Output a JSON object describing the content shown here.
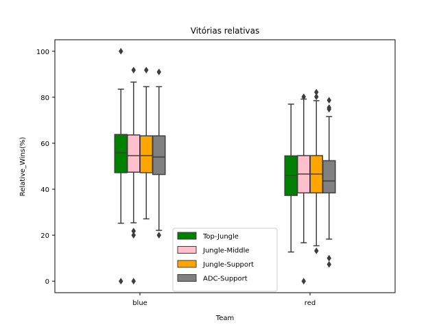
{
  "chart_data": {
    "type": "box",
    "title": "Vitórias relativas",
    "xlabel": "Team",
    "ylabel": "Relative_Wins(%)",
    "ylim": [
      -5,
      105
    ],
    "yticks": [
      0,
      20,
      40,
      60,
      80,
      100
    ],
    "categories": [
      "blue",
      "red"
    ],
    "legend_position": "lower-center",
    "series": [
      {
        "name": "Top-Jungle",
        "color": "#008000",
        "boxes": [
          {
            "whisker_low": 25.2,
            "q1": 47.2,
            "median": 55.8,
            "q3": 63.8,
            "whisker_high": 83.5,
            "outliers": [
              100,
              0
            ]
          },
          {
            "whisker_low": 12.7,
            "q1": 37.3,
            "median": 46.0,
            "q3": 54.5,
            "whisker_high": 77.0,
            "outliers": []
          }
        ]
      },
      {
        "name": "Jungle-Middle",
        "color": "#ffc0cb",
        "boxes": [
          {
            "whisker_low": 25.4,
            "q1": 47.4,
            "median": 54.6,
            "q3": 63.6,
            "whisker_high": 86.6,
            "outliers": [
              91.8,
              21.8,
              20.0,
              0
            ]
          },
          {
            "whisker_low": 16.7,
            "q1": 38.4,
            "median": 46.6,
            "q3": 54.6,
            "whisker_high": 79.2,
            "outliers": [
              80.2,
              0
            ]
          }
        ]
      },
      {
        "name": "Jungle-Support",
        "color": "#ffa500",
        "boxes": [
          {
            "whisker_low": 27.1,
            "q1": 47.2,
            "median": 54.6,
            "q3": 63.2,
            "whisker_high": 84.6,
            "outliers": [
              91.8
            ]
          },
          {
            "whisker_low": 15.4,
            "q1": 38.4,
            "median": 46.6,
            "q3": 54.6,
            "whisker_high": 78.5,
            "outliers": [
              82.2,
              80.2,
              13.2
            ]
          }
        ]
      },
      {
        "name": "ADC-Support",
        "color": "#808080",
        "boxes": [
          {
            "whisker_low": 22.1,
            "q1": 46.4,
            "median": 54.0,
            "q3": 63.2,
            "whisker_high": 84.6,
            "outliers": [
              91.0,
              20.0
            ]
          },
          {
            "whisker_low": 18.3,
            "q1": 38.4,
            "median": 43.6,
            "q3": 52.4,
            "whisker_high": 71.6,
            "outliers": [
              78.7,
              75.5,
              74.8,
              10.0,
              7.3
            ]
          }
        ]
      }
    ]
  }
}
